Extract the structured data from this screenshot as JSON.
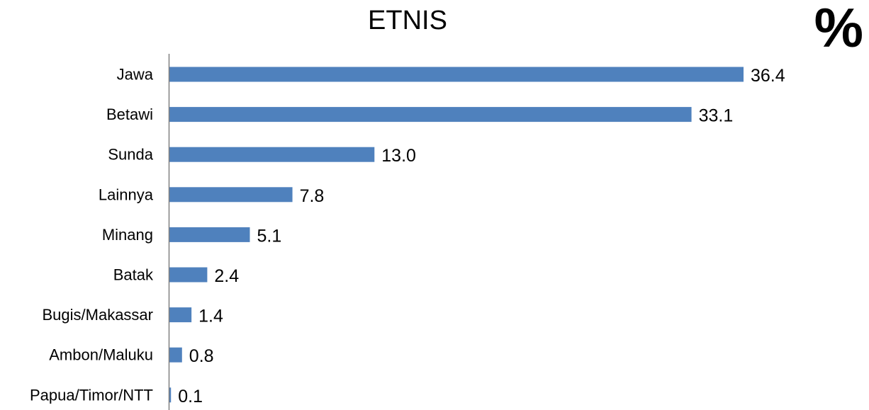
{
  "chart_data": {
    "type": "bar",
    "orientation": "horizontal",
    "title": "ETNIS",
    "unit_label": "%",
    "categories": [
      "Jawa",
      "Betawi",
      "Sunda",
      "Lainnya",
      "Minang",
      "Batak",
      "Bugis/Makassar",
      "Ambon/Maluku",
      "Papua/Timor/NTT"
    ],
    "values": [
      36.4,
      33.1,
      13.0,
      7.8,
      5.1,
      2.4,
      1.4,
      0.8,
      0.1
    ],
    "value_labels": [
      "36.4",
      "33.1",
      "13.0",
      "7.8",
      "5.1",
      "2.4",
      "1.4",
      "0.8",
      "0.1"
    ],
    "xlabel": "",
    "ylabel": "",
    "xlim": [
      0,
      36.4
    ],
    "grid": false,
    "legend": "none",
    "bar_color": "#4F81BD",
    "axis_color": "#808080"
  }
}
